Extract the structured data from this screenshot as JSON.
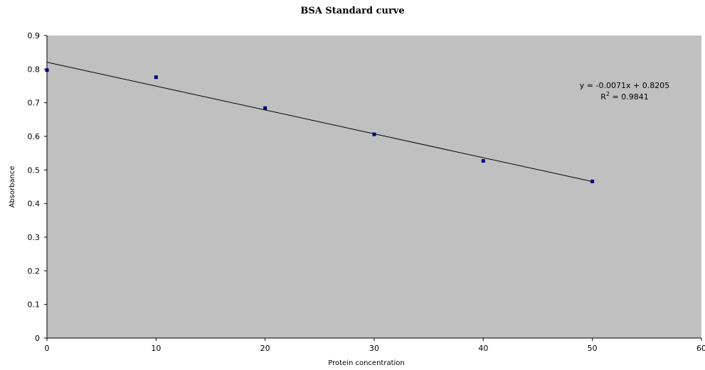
{
  "chart_data": {
    "type": "scatter",
    "title": "BSA Standard curve",
    "xlabel": "Protein concentration",
    "ylabel": "Absorbance",
    "xlim": [
      0,
      60
    ],
    "ylim": [
      0,
      0.9
    ],
    "x_ticks": [
      "0",
      "10",
      "20",
      "30",
      "40",
      "50",
      "60"
    ],
    "y_ticks": [
      "0",
      "0.1",
      "0.2",
      "0.3",
      "0.4",
      "0.5",
      "0.6",
      "0.7",
      "0.8",
      "0.9"
    ],
    "grid": false,
    "plot_background": "#c0c0c0",
    "marker_color": "#000080",
    "line_color": "#000000",
    "series": [
      {
        "x": [
          0,
          10,
          20,
          30,
          40,
          50
        ],
        "y": [
          0.797,
          0.776,
          0.684,
          0.606,
          0.527,
          0.466
        ]
      }
    ],
    "trendline": {
      "slope": -0.0071,
      "intercept": 0.8205,
      "x_range": [
        0,
        50
      ]
    },
    "annotations": {
      "equation": "y = -0.0071x + 0.8205",
      "r_squared_prefix": "R",
      "r_squared_exp": "2",
      "r_squared_value": " = 0.9841"
    }
  }
}
